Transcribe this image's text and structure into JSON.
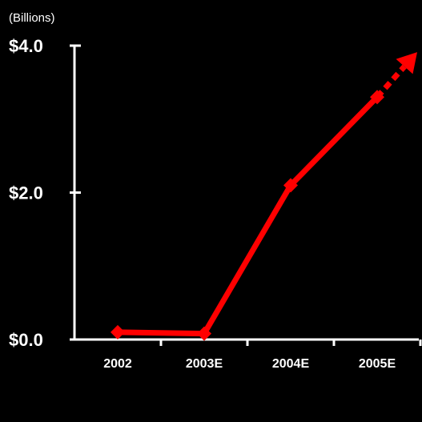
{
  "chart_data": {
    "type": "line",
    "title": "",
    "xlabel": "",
    "ylabel": "",
    "unit_note": "(Billions)",
    "categories": [
      "2002",
      "2003E",
      "2004E",
      "2005E"
    ],
    "y_ticks": [
      {
        "value": 0,
        "label": "$0.0"
      },
      {
        "value": 2,
        "label": "$2.0"
      },
      {
        "value": 4,
        "label": "$4.0"
      }
    ],
    "ylim": [
      0,
      4
    ],
    "series": [
      {
        "values": [
          0.1,
          0.08,
          2.1,
          3.3
        ],
        "projected_end": 3.95,
        "color": "#ff0000"
      }
    ],
    "axis_color": "#ffffff",
    "background": "#000000",
    "grid": false,
    "legend": "none"
  }
}
